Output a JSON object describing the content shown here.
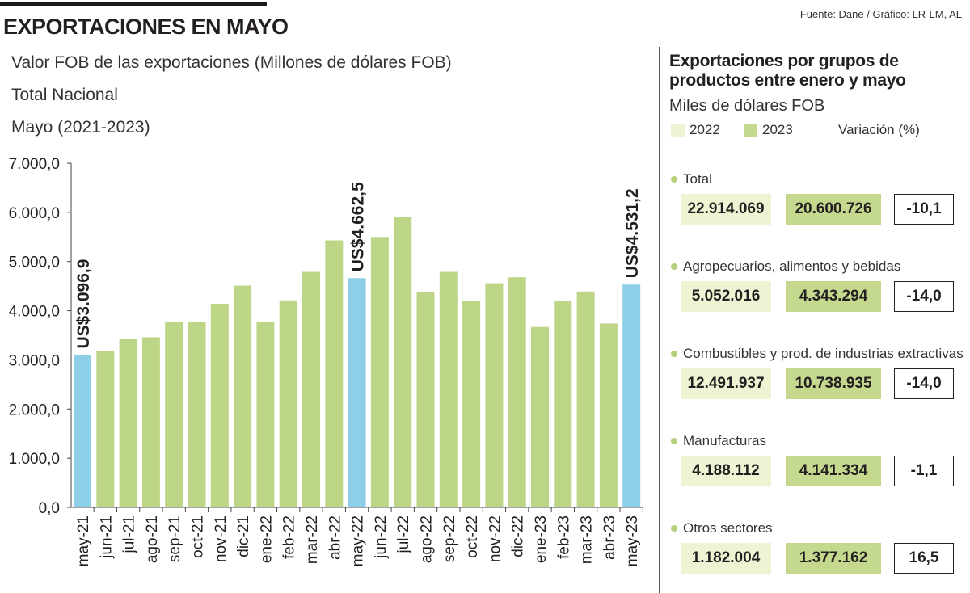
{
  "header": {
    "title": "EXPORTACIONES EN MAYO",
    "source": "Fuente: Dane / Gráfico: LR-LM, AL",
    "subtitle_lines": [
      "Valor FOB de las exportaciones (Millones de dólares FOB)",
      "Total Nacional",
      "Mayo (2021-2023)"
    ]
  },
  "chart_data": {
    "type": "bar",
    "categories": [
      "may-21",
      "jun-21",
      "jul-21",
      "ago-21",
      "sep-21",
      "oct-21",
      "nov-21",
      "dic-21",
      "ene-22",
      "feb-22",
      "mar-22",
      "abr-22",
      "may-22",
      "jun-22",
      "jul-22",
      "ago-22",
      "sep-22",
      "oct-22",
      "nov-22",
      "dic-22",
      "ene-23",
      "feb-23",
      "mar-23",
      "abr-23",
      "may-23"
    ],
    "values": [
      3096.9,
      3180,
      3420,
      3460,
      3780,
      3780,
      4140,
      4510,
      3780,
      4210,
      4790,
      5430,
      4662.5,
      5500,
      5910,
      4380,
      4790,
      4200,
      4560,
      4680,
      3670,
      4200,
      4390,
      3740,
      4531.2
    ],
    "highlight_indices": [
      0,
      12,
      24
    ],
    "annotations": [
      "US$3.096,9",
      "US$4.662,5",
      "US$4.531,2"
    ],
    "ylim": [
      0,
      7000
    ],
    "yticks": [
      0,
      1000,
      2000,
      3000,
      4000,
      5000,
      6000,
      7000
    ],
    "ytick_labels": [
      "0,0",
      "1.000,0",
      "2.000,0",
      "3.000,0",
      "4.000,0",
      "5.000,0",
      "6.000,0",
      "7.000,0"
    ],
    "colors": {
      "regular": "#bdd587",
      "highlight": "#8dcfe6",
      "axis": "#444444",
      "label": "#231f20"
    }
  },
  "panel": {
    "title_line1": "Exportaciones por grupos de",
    "title_line2": "productos entre enero y mayo",
    "subtitle": "Miles de dólares FOB",
    "legend": {
      "y2022": "2022",
      "y2023": "2023",
      "variation": "Variación (%)"
    },
    "groups": [
      {
        "name": "Total",
        "v2022": "22.914.069",
        "v2023": "20.600.726",
        "var": "-10,1"
      },
      {
        "name": "Agropecuarios, alimentos y bebidas",
        "v2022": "5.052.016",
        "v2023": "4.343.294",
        "var": "-14,0"
      },
      {
        "name": "Combustibles y prod. de industrias extractivas",
        "v2022": "12.491.937",
        "v2023": "10.738.935",
        "var": "-14,0"
      },
      {
        "name": "Manufacturas",
        "v2022": "4.188.112",
        "v2023": "4.141.334",
        "var": "-1,1"
      },
      {
        "name": "Otros sectores",
        "v2022": "1.182.004",
        "v2023": "1.377.162",
        "var": "16,5"
      }
    ]
  }
}
